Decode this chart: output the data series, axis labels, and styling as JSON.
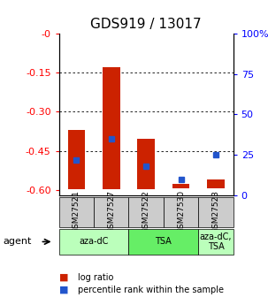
{
  "title": "GDS919 / 13017",
  "samples": [
    "GSM27521",
    "GSM27527",
    "GSM27522",
    "GSM27530",
    "GSM27523"
  ],
  "log_ratio_top": [
    -0.37,
    -0.13,
    -0.405,
    -0.575,
    -0.558
  ],
  "log_ratio_bottom": [
    -0.598,
    -0.598,
    -0.598,
    -0.595,
    -0.595
  ],
  "percentile_values": [
    0.22,
    0.35,
    0.18,
    0.1,
    0.25
  ],
  "bar_color": "#cc2200",
  "percentile_color": "#2255cc",
  "ylim_left": [
    -0.62,
    0.0
  ],
  "ylim_right": [
    0.0,
    1.0
  ],
  "yticks_left": [
    0.0,
    -0.15,
    -0.3,
    -0.45,
    -0.6
  ],
  "yticks_right": [
    0.0,
    0.25,
    0.5,
    0.75,
    1.0
  ],
  "ytick_labels_left": [
    "-0",
    "-0.15",
    "-0.30",
    "-0.45",
    "-0.60"
  ],
  "ytick_labels_right": [
    "0",
    "25",
    "50",
    "75",
    "100%"
  ],
  "groups": [
    {
      "label": "aza-dC",
      "start": 0,
      "end": 2,
      "color": "#bbffbb"
    },
    {
      "label": "TSA",
      "start": 2,
      "end": 4,
      "color": "#66ee66"
    },
    {
      "label": "aza-dC,\nTSA",
      "start": 4,
      "end": 5,
      "color": "#bbffbb"
    }
  ],
  "agent_label": "agent",
  "legend_items": [
    {
      "color": "#cc2200",
      "label": "log ratio"
    },
    {
      "color": "#2255cc",
      "label": "percentile rank within the sample"
    }
  ],
  "sample_bg_color": "#cccccc",
  "grid_color": "#555555",
  "title_fontsize": 11,
  "tick_fontsize": 8,
  "bar_width": 0.5
}
